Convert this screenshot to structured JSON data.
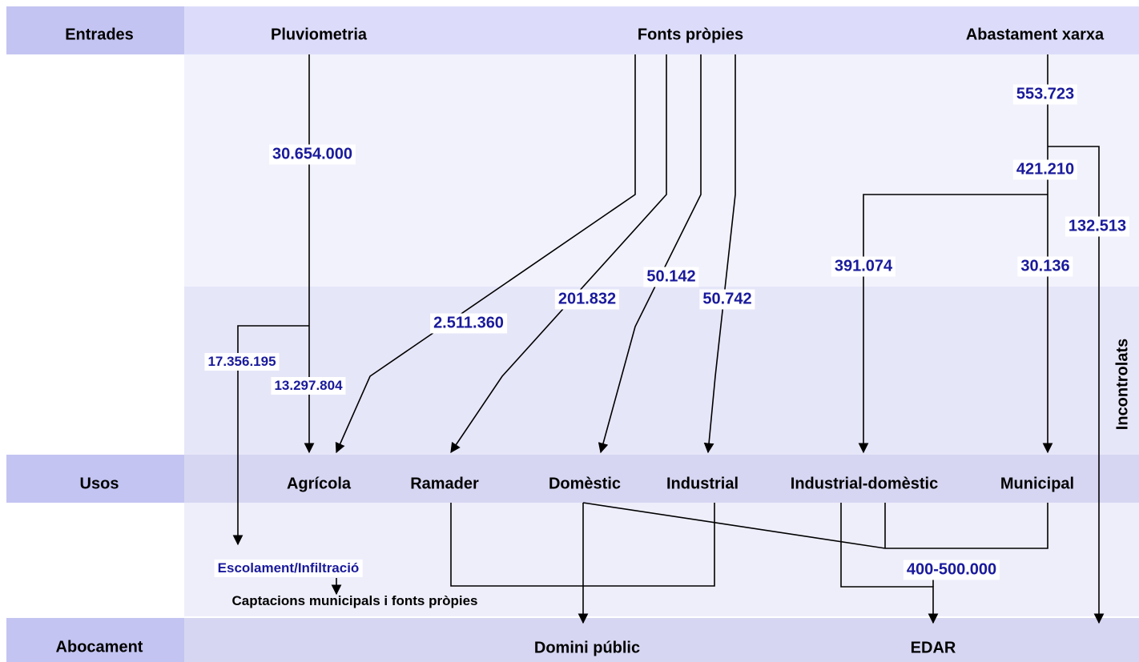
{
  "rows": {
    "inputs": "Entrades",
    "uses": "Usos",
    "discharge": "Abocament"
  },
  "sources": [
    "Pluviometria",
    "Fonts pròpies",
    "Abastament xarxa"
  ],
  "uses": [
    "Agrícola",
    "Ramader",
    "Domèstic",
    "Industrial",
    "Industrial-domèstic",
    "Municipal"
  ],
  "destinations": [
    "Domini públic",
    "EDAR"
  ],
  "side_label": "Incontrolats",
  "flows": {
    "pluviometria": "30.654.000",
    "runoff": "17.356.195",
    "agricultural_rain": "13.297.804",
    "fonts_agricola": "2.511.360",
    "fonts_ramader": "201.832",
    "fonts_domestic": "50.142",
    "fonts_industrial": "50.742",
    "network": "553.723",
    "network_controlled": "421.210",
    "network_uncontrolled": "132.513",
    "industrial_domestic": "391.074",
    "municipal": "30.136",
    "to_edar": "400-500.000"
  },
  "notes": {
    "runoff_label": "Escolament/Infiltració",
    "capture": "Captacions municipals i fonts pròpies"
  }
}
